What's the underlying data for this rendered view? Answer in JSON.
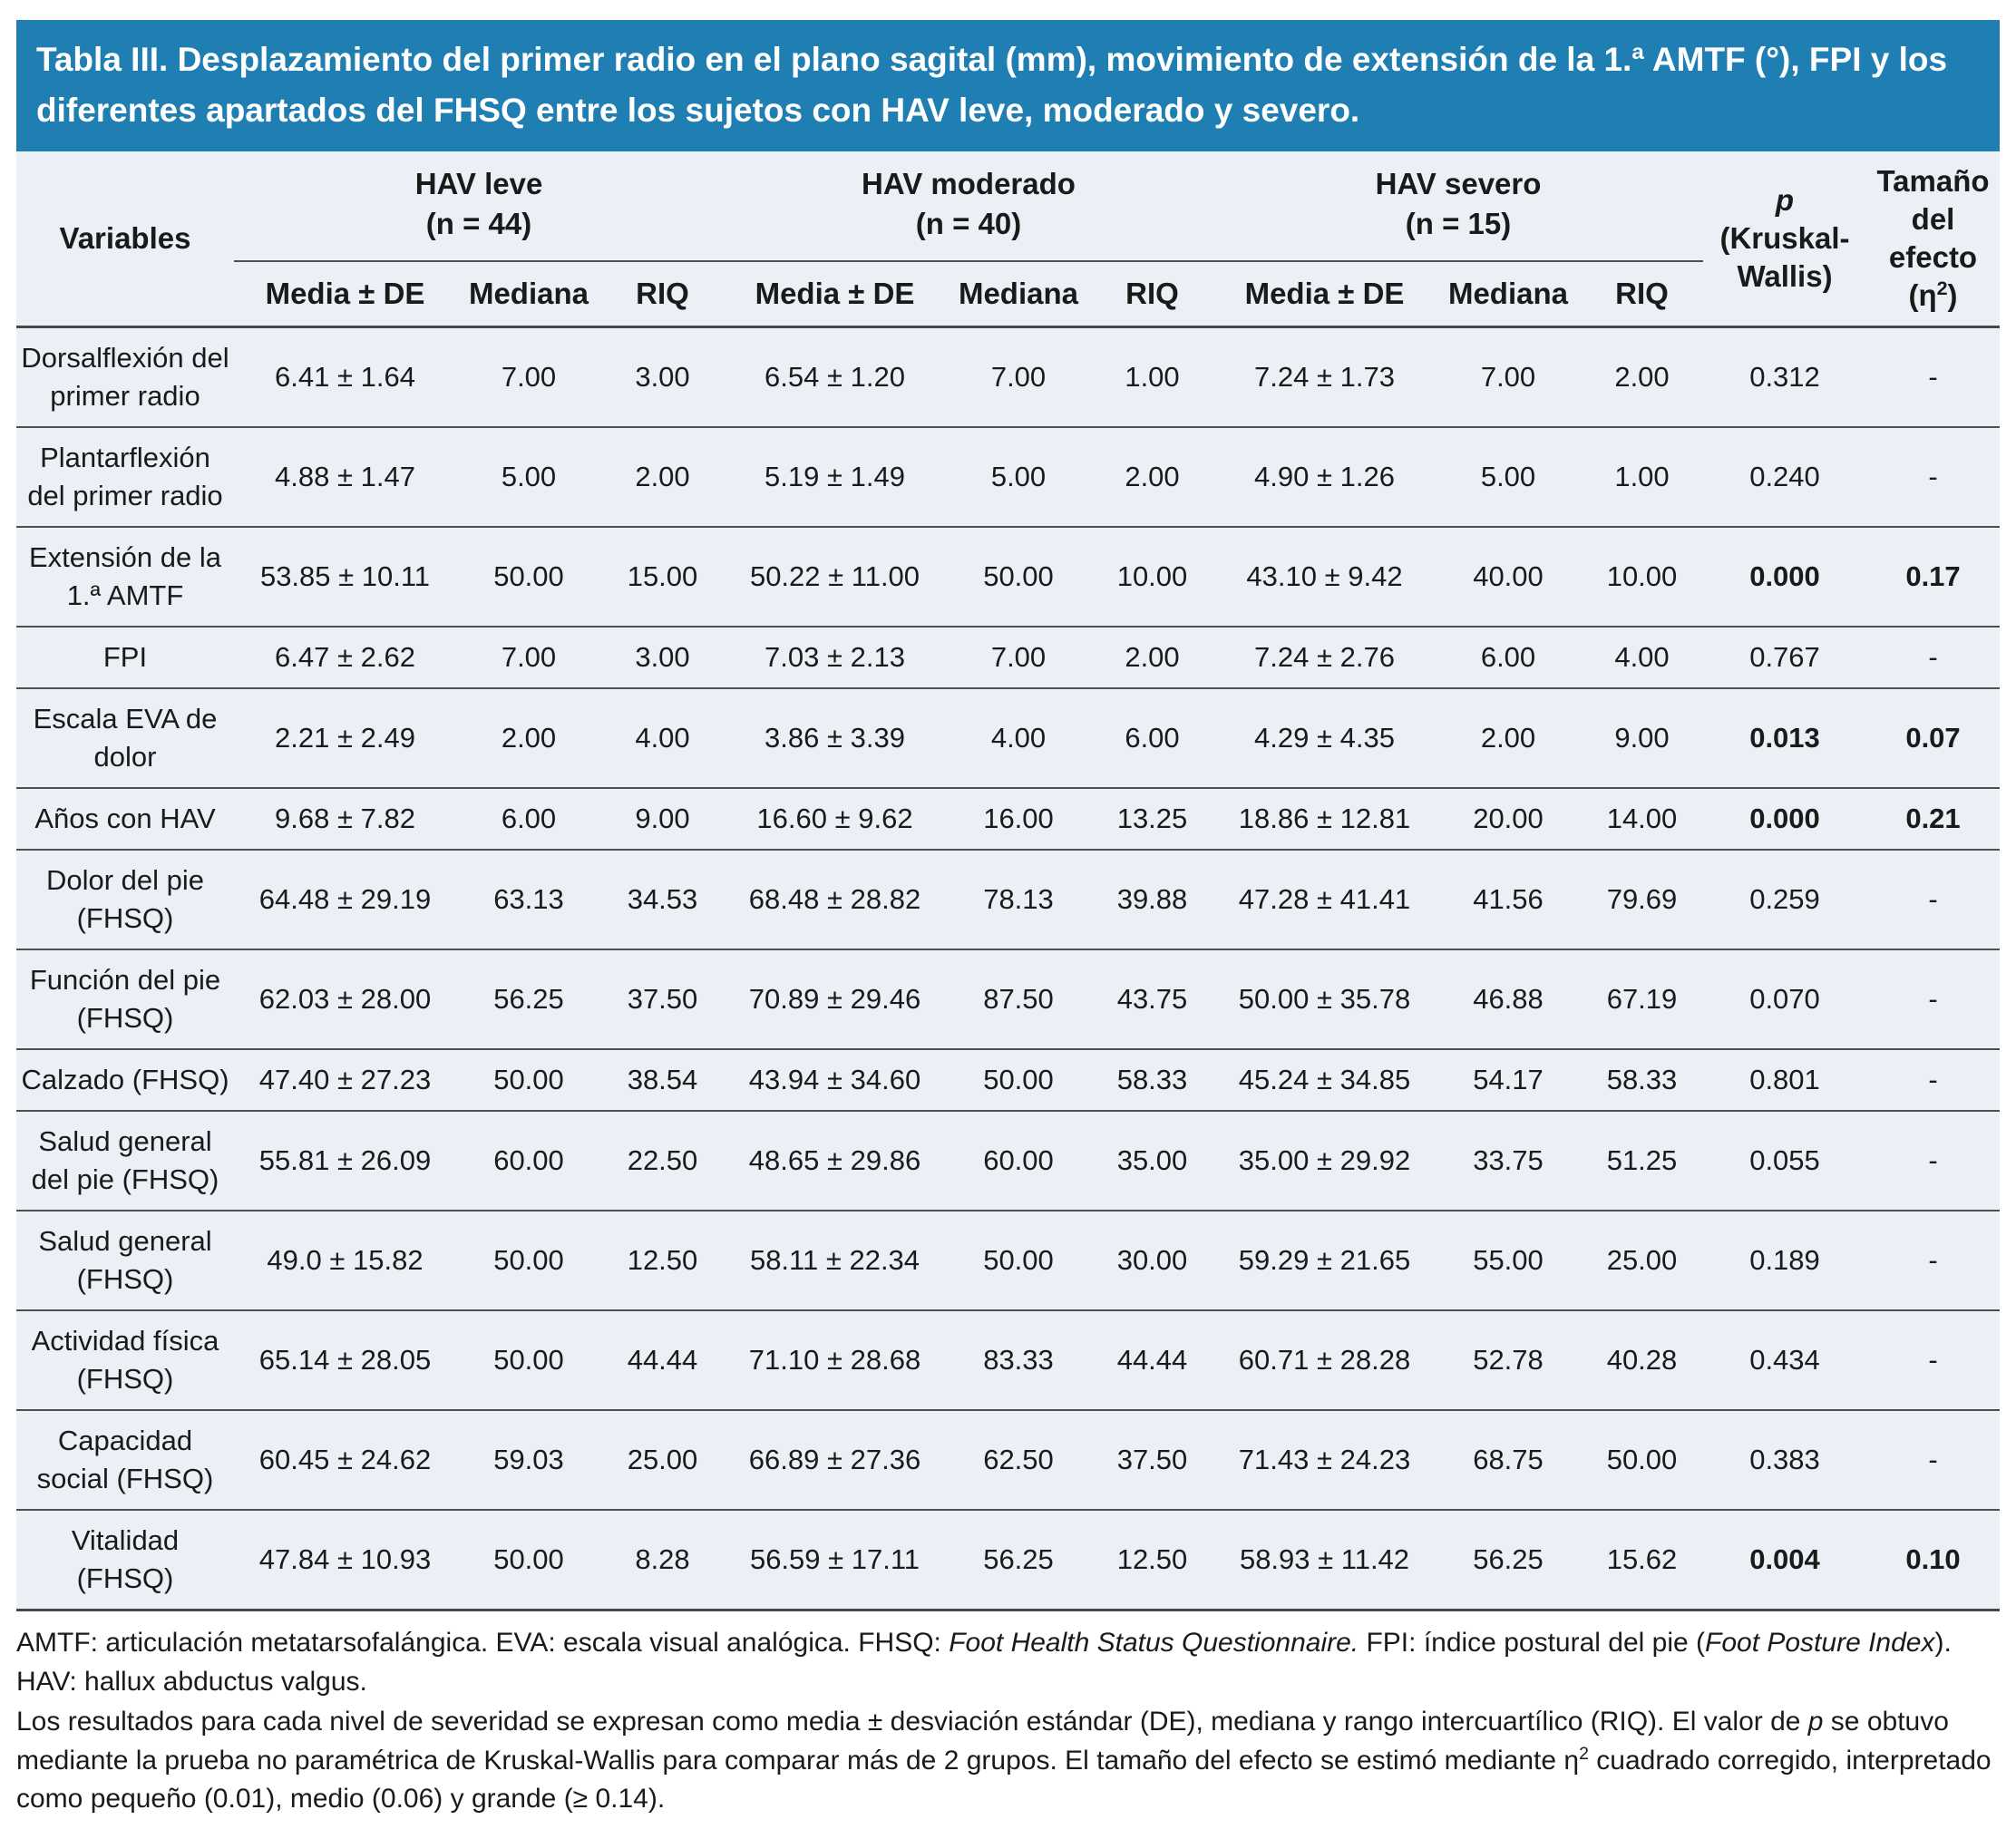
{
  "title": "Tabla III. Desplazamiento del primer radio en el plano sagital (mm), movimiento de extensión de la 1.ª AMTF (°), FPI y los diferentes apartados del FHSQ entre los sujetos con HAV leve, moderado y severo.",
  "table": {
    "variables_header": "Variables",
    "groups": [
      "HAV leve\n(n = 44)",
      "HAV moderado\n(n = 40)",
      "HAV severo\n(n = 15)"
    ],
    "subheaders": [
      "Media ± DE",
      "Mediana",
      "RIQ"
    ],
    "p_header": [
      {
        "t": "p",
        "i": true
      },
      {
        "t": "\n(Kruskal-Wallis)"
      }
    ],
    "effect_header": [
      {
        "t": "Tamaño\ndel\nefecto\n(η"
      },
      {
        "t": "2",
        "sup": true
      },
      {
        "t": ")"
      }
    ],
    "rows": [
      {
        "label": "Dorsalflexión del primer radio",
        "cells": [
          "6.41 ± 1.64",
          "7.00",
          "3.00",
          "6.54 ± 1.20",
          "7.00",
          "1.00",
          "7.24 ± 1.73",
          "7.00",
          "2.00"
        ],
        "p": "0.312",
        "effect": "-",
        "sig": false
      },
      {
        "label": "Plantarflexión del primer radio",
        "cells": [
          "4.88 ± 1.47",
          "5.00",
          "2.00",
          "5.19 ± 1.49",
          "5.00",
          "2.00",
          "4.90 ± 1.26",
          "5.00",
          "1.00"
        ],
        "p": "0.240",
        "effect": "-",
        "sig": false
      },
      {
        "label": "Extensión de la 1.ª AMTF",
        "cells": [
          "53.85 ± 10.11",
          "50.00",
          "15.00",
          "50.22 ± 11.00",
          "50.00",
          "10.00",
          "43.10 ± 9.42",
          "40.00",
          "10.00"
        ],
        "p": "0.000",
        "effect": "0.17",
        "sig": true
      },
      {
        "label": "FPI",
        "cells": [
          "6.47 ± 2.62",
          "7.00",
          "3.00",
          "7.03 ± 2.13",
          "7.00",
          "2.00",
          "7.24 ± 2.76",
          "6.00",
          "4.00"
        ],
        "p": "0.767",
        "effect": "-",
        "sig": false
      },
      {
        "label": "Escala EVA de dolor",
        "cells": [
          "2.21 ± 2.49",
          "2.00",
          "4.00",
          "3.86 ± 3.39",
          "4.00",
          "6.00",
          "4.29 ± 4.35",
          "2.00",
          "9.00"
        ],
        "p": "0.013",
        "effect": "0.07",
        "sig": true
      },
      {
        "label": "Años con HAV",
        "cells": [
          "9.68 ± 7.82",
          "6.00",
          "9.00",
          "16.60 ± 9.62",
          "16.00",
          "13.25",
          "18.86 ± 12.81",
          "20.00",
          "14.00"
        ],
        "p": "0.000",
        "effect": "0.21",
        "sig": true
      },
      {
        "label": "Dolor del pie (FHSQ)",
        "cells": [
          "64.48 ± 29.19",
          "63.13",
          "34.53",
          "68.48 ± 28.82",
          "78.13",
          "39.88",
          "47.28 ± 41.41",
          "41.56",
          "79.69"
        ],
        "p": "0.259",
        "effect": "-",
        "sig": false
      },
      {
        "label": "Función del pie (FHSQ)",
        "cells": [
          "62.03 ± 28.00",
          "56.25",
          "37.50",
          "70.89 ± 29.46",
          "87.50",
          "43.75",
          "50.00 ± 35.78",
          "46.88",
          "67.19"
        ],
        "p": "0.070",
        "effect": "-",
        "sig": false
      },
      {
        "label": "Calzado (FHSQ)",
        "cells": [
          "47.40 ± 27.23",
          "50.00",
          "38.54",
          "43.94 ± 34.60",
          "50.00",
          "58.33",
          "45.24 ± 34.85",
          "54.17",
          "58.33"
        ],
        "p": "0.801",
        "effect": "-",
        "sig": false
      },
      {
        "label": "Salud general del pie (FHSQ)",
        "cells": [
          "55.81 ± 26.09",
          "60.00",
          "22.50",
          "48.65 ± 29.86",
          "60.00",
          "35.00",
          "35.00 ± 29.92",
          "33.75",
          "51.25"
        ],
        "p": "0.055",
        "effect": "-",
        "sig": false
      },
      {
        "label": "Salud general (FHSQ)",
        "cells": [
          "49.0 ± 15.82",
          "50.00",
          "12.50",
          "58.11 ± 22.34",
          "50.00",
          "30.00",
          "59.29 ± 21.65",
          "55.00",
          "25.00"
        ],
        "p": "0.189",
        "effect": "-",
        "sig": false
      },
      {
        "label": "Actividad física (FHSQ)",
        "cells": [
          "65.14 ± 28.05",
          "50.00",
          "44.44",
          "71.10 ± 28.68",
          "83.33",
          "44.44",
          "60.71 ± 28.28",
          "52.78",
          "40.28"
        ],
        "p": "0.434",
        "effect": "-",
        "sig": false
      },
      {
        "label": "Capacidad social (FHSQ)",
        "cells": [
          "60.45 ± 24.62",
          "59.03",
          "25.00",
          "66.89 ± 27.36",
          "62.50",
          "37.50",
          "71.43 ± 24.23",
          "68.75",
          "50.00"
        ],
        "p": "0.383",
        "effect": "-",
        "sig": false
      },
      {
        "label": "Vitalidad (FHSQ)",
        "cells": [
          "47.84 ± 10.93",
          "50.00",
          "8.28",
          "56.59 ± 17.11",
          "56.25",
          "12.50",
          "58.93 ± 11.42",
          "56.25",
          "15.62"
        ],
        "p": "0.004",
        "effect": "0.10",
        "sig": true
      }
    ]
  },
  "footnotes": [
    [
      {
        "t": "AMTF: articulación metatarsofalángica. EVA: escala visual analógica. FHSQ: "
      },
      {
        "t": "Foot Health Status Questionnaire.",
        "i": true
      },
      {
        "t": " FPI: índice postural del pie ("
      },
      {
        "t": "Foot Posture Index",
        "i": true
      },
      {
        "t": "). HAV: hallux abductus valgus."
      }
    ],
    [
      {
        "t": "Los resultados para cada nivel de severidad se expresan como media ± desviación estándar (DE), mediana y rango intercuartílico (RIQ). El valor de "
      },
      {
        "t": "p",
        "i": true
      },
      {
        "t": " se obtuvo mediante la prueba no paramétrica de Kruskal-Wallis para comparar más de 2 grupos. El tamaño del efecto se estimó mediante η"
      },
      {
        "t": "2",
        "sup": true
      },
      {
        "t": " cuadrado corregido, interpretado como pequeño (0.01), medio (0.06) y grande (≥ 0.14)."
      }
    ]
  ]
}
